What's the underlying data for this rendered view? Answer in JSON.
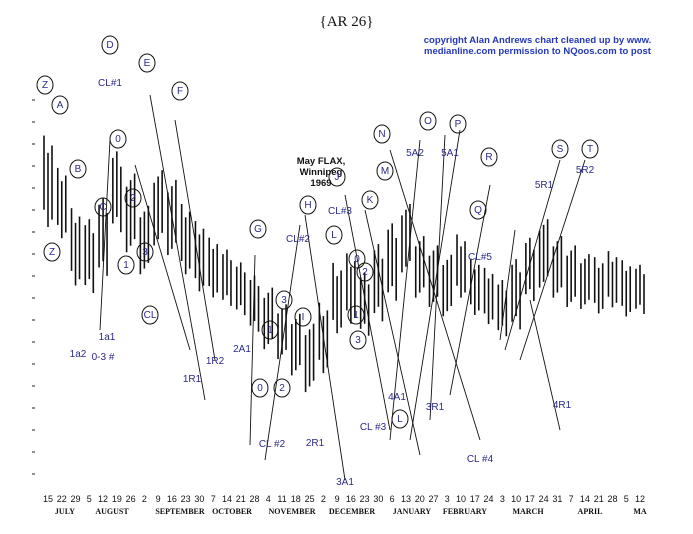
{
  "page_title": "{AR 26}",
  "copyright": {
    "line1": "copyright Alan Andrews chart cleaned up by www.",
    "line2": "medianline.com permission to NQoos.com to post"
  },
  "chart_title": {
    "line1": "May FLAX, Winnipeg",
    "line2": "1969"
  },
  "chart_data": {
    "type": "bar",
    "title": "May FLAX, Winnipeg 1969",
    "x_ticks": [
      "15",
      "22",
      "29",
      "5",
      "12",
      "19",
      "26",
      "2",
      "9",
      "16",
      "23",
      "30",
      "7",
      "14",
      "21",
      "28",
      "4",
      "11",
      "18",
      "25",
      "2",
      "9",
      "16",
      "23",
      "30",
      "6",
      "13",
      "20",
      "27",
      "3",
      "10",
      "17",
      "24",
      "3",
      "10",
      "17",
      "24",
      "31",
      "7",
      "14",
      "21",
      "28",
      "5",
      "12"
    ],
    "months": [
      "JULY",
      "AUGUST",
      "SEPTEMBER",
      "OCTOBER",
      "NOVEMBER",
      "DECEMBER",
      "JANUARY",
      "FEBRUARY",
      "MARCH",
      "APRIL",
      "MA"
    ],
    "ohlc_weekly_approx": [
      {
        "week": "15",
        "high": 88,
        "low": 62
      },
      {
        "week": "22",
        "high": 80,
        "low": 60
      },
      {
        "week": "29",
        "high": 70,
        "low": 48
      },
      {
        "week": "5",
        "high": 66,
        "low": 45
      },
      {
        "week": "12",
        "high": 72,
        "low": 50
      },
      {
        "week": "19",
        "high": 85,
        "low": 62
      },
      {
        "week": "26",
        "high": 78,
        "low": 55
      },
      {
        "week": "2",
        "high": 70,
        "low": 50
      },
      {
        "week": "9",
        "high": 80,
        "low": 58
      },
      {
        "week": "16",
        "high": 78,
        "low": 56
      },
      {
        "week": "23",
        "high": 70,
        "low": 50
      },
      {
        "week": "30",
        "high": 66,
        "low": 46
      },
      {
        "week": "7",
        "high": 62,
        "low": 45
      },
      {
        "week": "14",
        "high": 58,
        "low": 42
      },
      {
        "week": "21",
        "high": 55,
        "low": 40
      },
      {
        "week": "28",
        "high": 52,
        "low": 36
      },
      {
        "week": "4",
        "high": 48,
        "low": 30
      },
      {
        "week": "11",
        "high": 44,
        "low": 28
      },
      {
        "week": "18",
        "high": 42,
        "low": 24
      },
      {
        "week": "25",
        "high": 40,
        "low": 20
      },
      {
        "week": "2",
        "high": 44,
        "low": 24
      },
      {
        "week": "9",
        "high": 55,
        "low": 35
      },
      {
        "week": "16",
        "high": 58,
        "low": 38
      },
      {
        "week": "23",
        "high": 52,
        "low": 34
      },
      {
        "week": "30",
        "high": 60,
        "low": 38
      },
      {
        "week": "6",
        "high": 66,
        "low": 44
      },
      {
        "week": "13",
        "high": 70,
        "low": 50
      },
      {
        "week": "20",
        "high": 62,
        "low": 44
      },
      {
        "week": "27",
        "high": 60,
        "low": 42
      },
      {
        "week": "3",
        "high": 58,
        "low": 40
      },
      {
        "week": "10",
        "high": 62,
        "low": 44
      },
      {
        "week": "17",
        "high": 56,
        "low": 40
      },
      {
        "week": "24",
        "high": 54,
        "low": 38
      },
      {
        "week": "3",
        "high": 50,
        "low": 34
      },
      {
        "week": "10",
        "high": 56,
        "low": 36
      },
      {
        "week": "17",
        "high": 62,
        "low": 44
      },
      {
        "week": "24",
        "high": 66,
        "low": 46
      },
      {
        "week": "31",
        "high": 62,
        "low": 44
      },
      {
        "week": "7",
        "high": 60,
        "low": 42
      },
      {
        "week": "14",
        "high": 58,
        "low": 42
      },
      {
        "week": "21",
        "high": 56,
        "low": 40
      },
      {
        "week": "28",
        "high": 58,
        "low": 42
      },
      {
        "week": "5",
        "high": 56,
        "low": 40
      },
      {
        "week": "12",
        "high": 54,
        "low": 40
      }
    ],
    "annotations": [
      "Z",
      "A",
      "B",
      "C",
      "D",
      "CL#1",
      "E",
      "F",
      "0",
      "2",
      "3",
      "1",
      "Z",
      "1a1",
      "1a2",
      "0-3 #",
      "CL",
      "1R1",
      "1R2",
      "2A1",
      "G",
      "3",
      "1",
      "0",
      "2",
      "H",
      "CL#2",
      "I",
      "CL #2",
      "2R1",
      "3A1",
      "J",
      "CL#3",
      "K",
      "L",
      "0",
      "2",
      "1",
      "3",
      "CL #3",
      "4A1",
      "L",
      "3R1",
      "M",
      "N",
      "5A2",
      "O",
      "5A1",
      "P",
      "Q",
      "CL#5",
      "R",
      "CL #4",
      "S",
      "5R1",
      "T",
      "5R2",
      "4R1"
    ],
    "ylim": [
      0,
      100
    ],
    "grid": false,
    "legend": "none"
  }
}
